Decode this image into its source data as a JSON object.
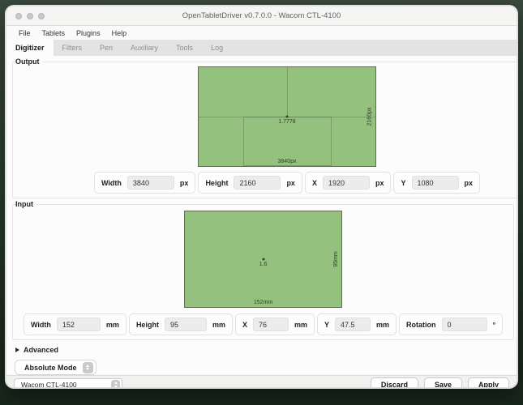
{
  "window": {
    "title": "OpenTabletDriver v0.7.0.0 - Wacom CTL-4100"
  },
  "menu": {
    "items": [
      {
        "label": "File"
      },
      {
        "label": "Tablets"
      },
      {
        "label": "Plugins"
      },
      {
        "label": "Help"
      }
    ]
  },
  "tabs": {
    "items": [
      {
        "label": "Digitizer",
        "active": true
      },
      {
        "label": "Filters",
        "active": false
      },
      {
        "label": "Pen",
        "active": false
      },
      {
        "label": "Auxiliary",
        "active": false
      },
      {
        "label": "Tools",
        "active": false
      },
      {
        "label": "Log",
        "active": false
      }
    ]
  },
  "output": {
    "legend": "Output",
    "area": {
      "aspect_ratio": "1.7778",
      "width_label": "3840px",
      "height_label": "2160px"
    },
    "fields": [
      {
        "label": "Width",
        "value": "3840",
        "unit": "px"
      },
      {
        "label": "Height",
        "value": "2160",
        "unit": "px"
      },
      {
        "label": "X",
        "value": "1920",
        "unit": "px"
      },
      {
        "label": "Y",
        "value": "1080",
        "unit": "px"
      }
    ]
  },
  "input": {
    "legend": "Input",
    "area": {
      "aspect_ratio": "1.6",
      "width_label": "152mm",
      "height_label": "95mm"
    },
    "fields": [
      {
        "label": "Width",
        "value": "152",
        "unit": "mm"
      },
      {
        "label": "Height",
        "value": "95",
        "unit": "mm"
      },
      {
        "label": "X",
        "value": "76",
        "unit": "mm"
      },
      {
        "label": "Y",
        "value": "47.5",
        "unit": "mm"
      },
      {
        "label": "Rotation",
        "value": "0",
        "unit": "°"
      }
    ]
  },
  "advanced": {
    "label": "Advanced"
  },
  "mode_select": {
    "value": "Absolute Mode"
  },
  "footer": {
    "tablet_select": "Wacom CTL-4100",
    "buttons": {
      "discard": "Discard",
      "save": "Save",
      "apply": "Apply"
    }
  },
  "colors": {
    "area_fill": "#94c17e",
    "area_border": "#5f6b52",
    "desktop_background": "#2b3e2f",
    "window_background": "#fcfcfc"
  }
}
